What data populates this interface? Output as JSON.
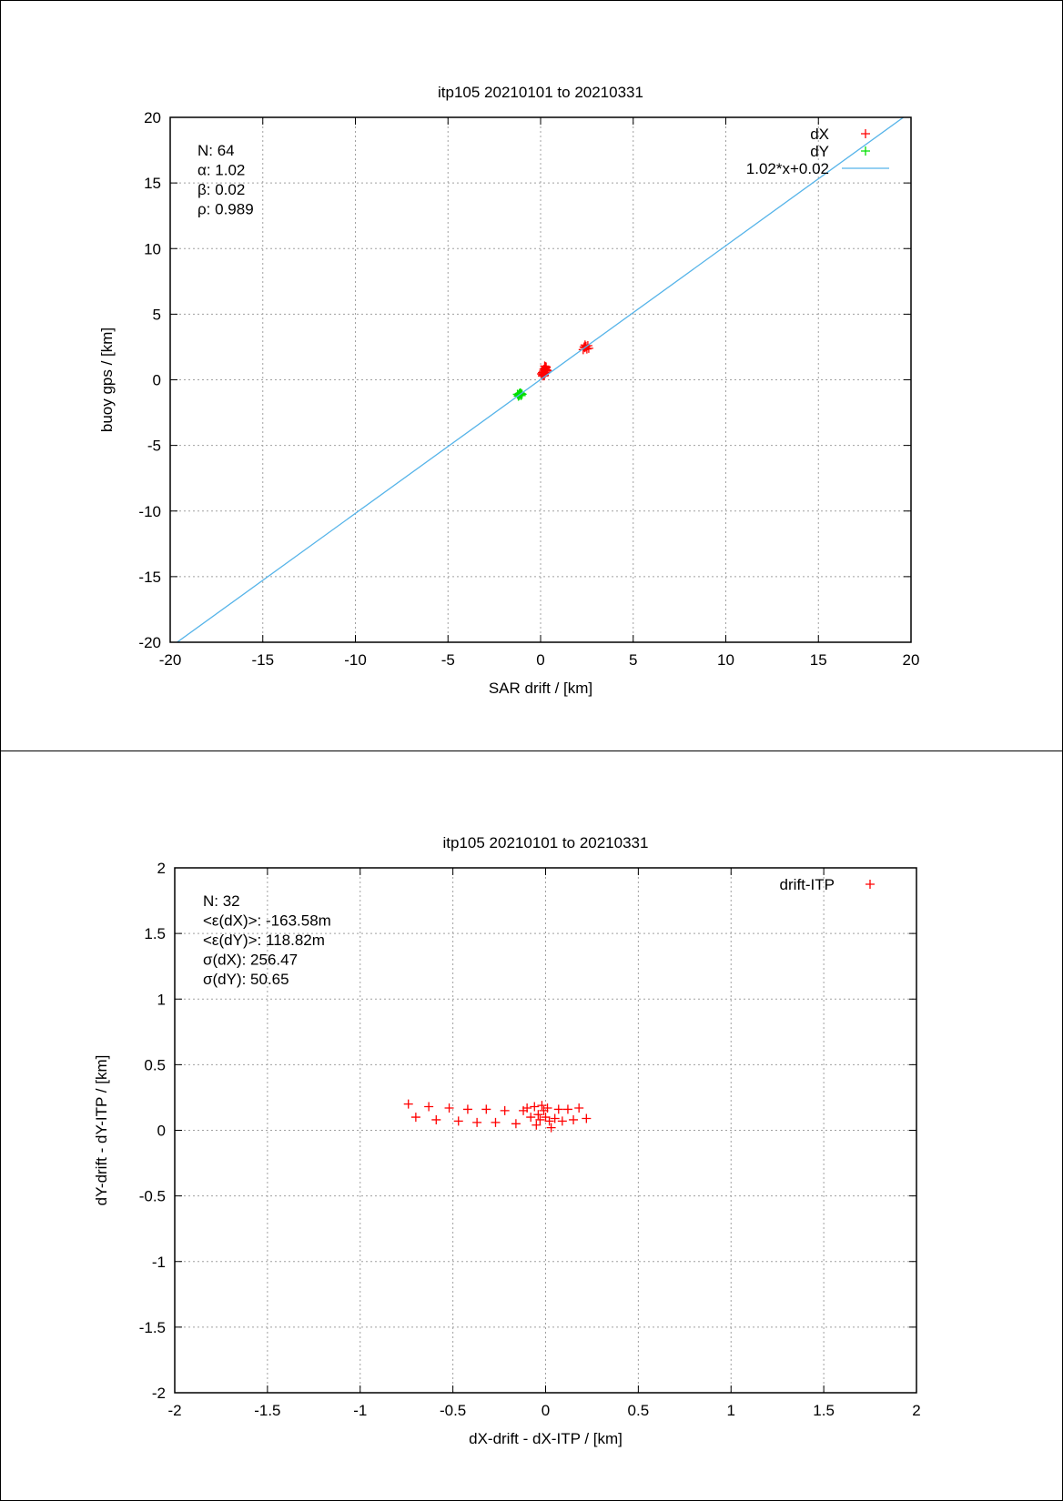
{
  "chart_data": [
    {
      "type": "scatter",
      "title": "itp105 20210101 to 20210331",
      "xlabel": "SAR drift / [km]",
      "ylabel": "buoy gps / [km]",
      "xlim": [
        -20,
        20
      ],
      "ylim": [
        -20,
        20
      ],
      "xticks": [
        -20,
        -15,
        -10,
        -5,
        0,
        5,
        10,
        15,
        20
      ],
      "yticks": [
        -20,
        -15,
        -10,
        -5,
        0,
        5,
        10,
        15,
        20
      ],
      "grid": true,
      "legend_position": "top-right",
      "stats": [
        "N: 64",
        "α: 1.02",
        "β: 0.02",
        "ρ: 0.989"
      ],
      "series": [
        {
          "name": "dX",
          "kind": "points",
          "marker": "+",
          "color": "#ff0000",
          "points": [
            [
              0.1,
              0.3
            ],
            [
              0.15,
              0.45
            ],
            [
              0.2,
              0.55
            ],
            [
              0.22,
              0.7
            ],
            [
              0.25,
              0.85
            ],
            [
              0.28,
              1.0
            ],
            [
              0.3,
              0.6
            ],
            [
              0.12,
              0.4
            ],
            [
              0.18,
              0.8
            ],
            [
              0.3,
              0.95
            ],
            [
              0.2,
              0.35
            ],
            [
              0.25,
              0.5
            ],
            [
              0.15,
              0.65
            ],
            [
              0.32,
              0.75
            ],
            [
              0.1,
              0.55
            ],
            [
              0.27,
              0.9
            ],
            [
              0.22,
              1.05
            ],
            [
              0.18,
              0.3
            ],
            [
              0.35,
              0.7
            ],
            [
              0.05,
              0.45
            ],
            [
              2.3,
              2.3
            ],
            [
              2.4,
              2.45
            ],
            [
              2.45,
              2.55
            ],
            [
              2.5,
              2.35
            ],
            [
              2.55,
              2.6
            ],
            [
              2.35,
              2.5
            ],
            [
              2.6,
              2.4
            ],
            [
              2.4,
              2.65
            ]
          ]
        },
        {
          "name": "dY",
          "kind": "points",
          "marker": "+",
          "color": "#00e000",
          "points": [
            [
              -1.2,
              -1.15
            ],
            [
              -1.1,
              -1.1
            ],
            [
              -1.05,
              -1.2
            ],
            [
              -1.15,
              -1.05
            ],
            [
              -1.0,
              -1.1
            ],
            [
              -1.2,
              -1.25
            ],
            [
              -1.1,
              -1.0
            ],
            [
              -1.25,
              -1.1
            ],
            [
              -1.05,
              -1.05
            ],
            [
              -1.15,
              -1.2
            ]
          ]
        },
        {
          "name": "1.02*x+0.02",
          "kind": "line",
          "color": "#56b4e9",
          "slope": 1.02,
          "intercept": 0.02
        }
      ]
    },
    {
      "type": "scatter",
      "title": "itp105 20210101 to 20210331",
      "xlabel": "dX-drift - dX-ITP / [km]",
      "ylabel": "dY-drift - dY-ITP / [km]",
      "xlim": [
        -2,
        2
      ],
      "ylim": [
        -2,
        2
      ],
      "xticks": [
        -2,
        -1.5,
        -1,
        -0.5,
        0,
        0.5,
        1,
        1.5,
        2
      ],
      "yticks": [
        -2,
        -1.5,
        -1,
        -0.5,
        0,
        0.5,
        1,
        1.5,
        2
      ],
      "grid": true,
      "legend_position": "top-right",
      "stats": [
        "N: 32",
        "<ε(dX)>:  -163.58m",
        "<ε(dY)>: 118.82m",
        "σ(dX):  256.47",
        "σ(dY):  50.65"
      ],
      "series": [
        {
          "name": "drift-ITP",
          "kind": "points",
          "marker": "+",
          "color": "#ff0000",
          "points": [
            [
              -0.74,
              0.2
            ],
            [
              -0.7,
              0.1
            ],
            [
              -0.63,
              0.18
            ],
            [
              -0.59,
              0.08
            ],
            [
              -0.52,
              0.17
            ],
            [
              -0.47,
              0.07
            ],
            [
              -0.42,
              0.16
            ],
            [
              -0.37,
              0.06
            ],
            [
              -0.32,
              0.16
            ],
            [
              -0.27,
              0.06
            ],
            [
              -0.22,
              0.15
            ],
            [
              -0.16,
              0.05
            ],
            [
              -0.12,
              0.15
            ],
            [
              -0.1,
              0.17
            ],
            [
              -0.08,
              0.1
            ],
            [
              -0.06,
              0.18
            ],
            [
              -0.05,
              0.04
            ],
            [
              -0.04,
              0.12
            ],
            [
              -0.03,
              0.08
            ],
            [
              -0.02,
              0.19
            ],
            [
              -0.01,
              0.15
            ],
            [
              0.0,
              0.1
            ],
            [
              0.01,
              0.17
            ],
            [
              0.02,
              0.07
            ],
            [
              0.03,
              0.02
            ],
            [
              0.05,
              0.09
            ],
            [
              0.07,
              0.16
            ],
            [
              0.09,
              0.07
            ],
            [
              0.12,
              0.16
            ],
            [
              0.15,
              0.08
            ],
            [
              0.18,
              0.17
            ],
            [
              0.22,
              0.09
            ]
          ]
        }
      ]
    }
  ]
}
